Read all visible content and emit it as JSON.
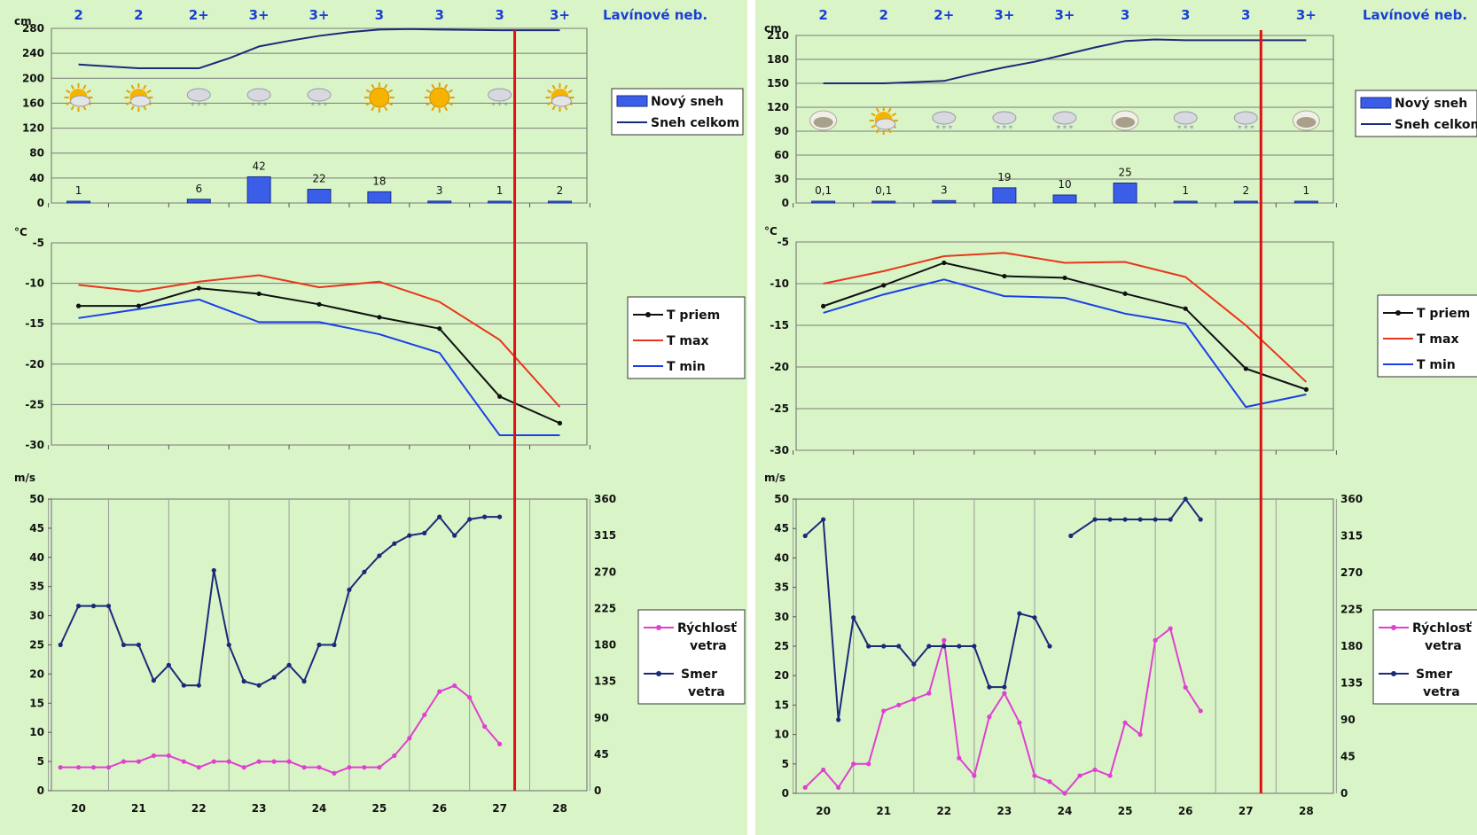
{
  "panels": [
    {
      "id": "left",
      "days": [
        "20",
        "21",
        "22",
        "23",
        "24",
        "25",
        "26",
        "27",
        "28"
      ],
      "avalanche_levels": [
        "2",
        "2",
        "2+",
        "3+",
        "3+",
        "3",
        "3",
        "3",
        "3+"
      ],
      "avalanche_title": "Lavínové neb.",
      "red_marker_x": 27.25,
      "snow": {
        "unit": "cm",
        "yticks": [
          "280",
          "240",
          "200",
          "160",
          "120",
          "80",
          "40",
          "0"
        ],
        "ymax": 280,
        "new_snow": [
          1,
          null,
          6,
          42,
          22,
          18,
          3,
          1,
          2
        ],
        "new_snow_labels": [
          "1",
          "",
          "6",
          "42",
          "22",
          "18",
          "3",
          "1",
          "2"
        ],
        "total_snow": [
          [
            20,
            222
          ],
          [
            21,
            216
          ],
          [
            22,
            216
          ],
          [
            22.5,
            232
          ],
          [
            23,
            251
          ],
          [
            23.5,
            260
          ],
          [
            24,
            268
          ],
          [
            24.5,
            274
          ],
          [
            25,
            278
          ],
          [
            25.5,
            279
          ],
          [
            26,
            278
          ],
          [
            27,
            277
          ],
          [
            28,
            277
          ]
        ],
        "weather_icons": [
          "sun-cloud",
          "sun-cloud",
          "snow",
          "snow",
          "snow",
          "sun",
          "sun",
          "snow",
          "sun-cloud"
        ],
        "legend": [
          "Nový sneh",
          "Sneh celkom"
        ]
      },
      "temp": {
        "unit": "°C",
        "yticks": [
          "-5",
          "-10",
          "-15",
          "-20",
          "-25",
          "-30"
        ],
        "ymin": -30,
        "ymax": -5,
        "t_avg": [
          [
            20,
            -12.8
          ],
          [
            21,
            -12.8
          ],
          [
            22,
            -10.6
          ],
          [
            23,
            -11.3
          ],
          [
            24,
            -12.6
          ],
          [
            25,
            -14.2
          ],
          [
            26,
            -15.6
          ],
          [
            27,
            -24
          ],
          [
            28,
            -27.3
          ]
        ],
        "t_max": [
          [
            20,
            -10.2
          ],
          [
            21,
            -11
          ],
          [
            22,
            -9.8
          ],
          [
            23,
            -9
          ],
          [
            24,
            -10.5
          ],
          [
            25,
            -9.8
          ],
          [
            26,
            -12.3
          ],
          [
            27,
            -17
          ],
          [
            28,
            -25.3
          ]
        ],
        "t_min": [
          [
            20,
            -14.3
          ],
          [
            21,
            -13.2
          ],
          [
            22,
            -12
          ],
          [
            23,
            -14.8
          ],
          [
            24,
            -14.8
          ],
          [
            25,
            -16.3
          ],
          [
            26,
            -18.6
          ],
          [
            27,
            -28.8
          ],
          [
            28,
            -28.8
          ]
        ],
        "legend": [
          "T priem",
          "T max",
          "T min"
        ]
      },
      "wind": {
        "unit": "m/s",
        "yticks": [
          "50",
          "45",
          "40",
          "35",
          "30",
          "25",
          "20",
          "15",
          "10",
          "5",
          "0"
        ],
        "y2ticks": [
          "360",
          "315",
          "270",
          "225",
          "180",
          "135",
          "90",
          "45",
          "0"
        ],
        "speed": [
          [
            19.7,
            4
          ],
          [
            20,
            4
          ],
          [
            20.25,
            4
          ],
          [
            20.5,
            4
          ],
          [
            20.75,
            5
          ],
          [
            21,
            5
          ],
          [
            21.25,
            6
          ],
          [
            21.5,
            6
          ],
          [
            21.75,
            5
          ],
          [
            22,
            4
          ],
          [
            22.25,
            5
          ],
          [
            22.5,
            5
          ],
          [
            22.75,
            4
          ],
          [
            23,
            5
          ],
          [
            23.25,
            5
          ],
          [
            23.5,
            5
          ],
          [
            23.75,
            4
          ],
          [
            24,
            4
          ],
          [
            24.25,
            3
          ],
          [
            24.5,
            4
          ],
          [
            24.75,
            4
          ],
          [
            25,
            4
          ],
          [
            25.25,
            6
          ],
          [
            25.5,
            9
          ],
          [
            25.75,
            13
          ],
          [
            26,
            17
          ],
          [
            26.25,
            18
          ],
          [
            26.5,
            16
          ],
          [
            26.75,
            11
          ],
          [
            27,
            8
          ]
        ],
        "direction": [
          [
            19.7,
            180
          ],
          [
            20,
            228
          ],
          [
            20.25,
            228
          ],
          [
            20.5,
            228
          ],
          [
            20.75,
            180
          ],
          [
            21,
            180
          ],
          [
            21.25,
            136
          ],
          [
            21.5,
            155
          ],
          [
            21.75,
            130
          ],
          [
            22,
            130
          ],
          [
            22.25,
            272
          ],
          [
            22.5,
            180
          ],
          [
            22.75,
            135
          ],
          [
            23,
            130
          ],
          [
            23.25,
            140
          ],
          [
            23.5,
            155
          ],
          [
            23.75,
            135
          ],
          [
            24,
            180
          ],
          [
            24.25,
            180
          ],
          [
            24.5,
            248
          ],
          [
            24.75,
            270
          ],
          [
            25,
            290
          ],
          [
            25.25,
            305
          ],
          [
            25.5,
            315
          ],
          [
            25.75,
            318
          ],
          [
            26,
            338
          ],
          [
            26.25,
            315
          ],
          [
            26.5,
            335
          ],
          [
            26.75,
            338
          ],
          [
            27,
            338
          ]
        ],
        "legend": [
          "Rýchlosť vetra",
          "Smer vetra"
        ]
      }
    },
    {
      "id": "right",
      "days": [
        "20",
        "21",
        "22",
        "23",
        "24",
        "25",
        "26",
        "27",
        "28"
      ],
      "avalanche_levels": [
        "2",
        "2",
        "2+",
        "3+",
        "3+",
        "3",
        "3",
        "3",
        "3+"
      ],
      "avalanche_title": "Lavínové neb.",
      "red_marker_x": 27.25,
      "snow": {
        "unit": "cm",
        "yticks": [
          "210",
          "180",
          "150",
          "120",
          "90",
          "60",
          "30",
          "0"
        ],
        "ymax": 210,
        "new_snow": [
          0.1,
          0.1,
          3,
          19,
          10,
          25,
          1,
          2,
          1
        ],
        "new_snow_labels": [
          "0,1",
          "0,1",
          "3",
          "19",
          "10",
          "25",
          "1",
          "2",
          "1"
        ],
        "total_snow": [
          [
            20,
            150
          ],
          [
            21,
            150
          ],
          [
            22,
            153
          ],
          [
            22.5,
            162
          ],
          [
            23,
            170
          ],
          [
            23.5,
            177
          ],
          [
            24,
            186
          ],
          [
            24.5,
            195
          ],
          [
            25,
            203
          ],
          [
            25.5,
            205
          ],
          [
            26,
            204
          ],
          [
            27,
            204
          ],
          [
            28,
            204
          ]
        ],
        "weather_icons": [
          "cloud",
          "sun-cloud",
          "snow",
          "snow",
          "snow",
          "cloud",
          "snow",
          "snow",
          "cloud"
        ],
        "legend": [
          "Nový sneh",
          "Sneh celkom"
        ]
      },
      "temp": {
        "unit": "°C",
        "yticks": [
          "-5",
          "-10",
          "-15",
          "-20",
          "-25",
          "-30"
        ],
        "ymin": -30,
        "ymax": -5,
        "t_avg": [
          [
            20,
            -12.7
          ],
          [
            21,
            -10.2
          ],
          [
            22,
            -7.5
          ],
          [
            23,
            -9.1
          ],
          [
            24,
            -9.3
          ],
          [
            25,
            -11.2
          ],
          [
            26,
            -13
          ],
          [
            27,
            -20.2
          ],
          [
            28,
            -22.7
          ]
        ],
        "t_max": [
          [
            20,
            -10
          ],
          [
            21,
            -8.5
          ],
          [
            22,
            -6.7
          ],
          [
            23,
            -6.3
          ],
          [
            24,
            -7.5
          ],
          [
            25,
            -7.4
          ],
          [
            26,
            -9.2
          ],
          [
            27,
            -15
          ],
          [
            28,
            -21.8
          ]
        ],
        "t_min": [
          [
            20,
            -13.5
          ],
          [
            21,
            -11.3
          ],
          [
            22,
            -9.5
          ],
          [
            23,
            -11.5
          ],
          [
            24,
            -11.7
          ],
          [
            25,
            -13.6
          ],
          [
            26,
            -14.8
          ],
          [
            27,
            -24.8
          ],
          [
            28,
            -23.3
          ]
        ],
        "legend": [
          "T priem",
          "T max",
          "T min"
        ]
      },
      "wind": {
        "unit": "m/s",
        "yticks": [
          "50",
          "45",
          "40",
          "35",
          "30",
          "25",
          "20",
          "15",
          "10",
          "5",
          "0"
        ],
        "y2ticks": [
          "360",
          "315",
          "270",
          "225",
          "180",
          "135",
          "90",
          "45",
          "0"
        ],
        "speed": [
          [
            19.7,
            1
          ],
          [
            20,
            4
          ],
          [
            20.25,
            1
          ],
          [
            20.5,
            5
          ],
          [
            20.75,
            5
          ],
          [
            21,
            14
          ],
          [
            21.25,
            15
          ],
          [
            21.5,
            16
          ],
          [
            21.75,
            17
          ],
          [
            22,
            26
          ],
          [
            22.25,
            6
          ],
          [
            22.5,
            3
          ],
          [
            22.75,
            13
          ],
          [
            23,
            17
          ],
          [
            23.25,
            12
          ],
          [
            23.5,
            3
          ],
          [
            23.75,
            2
          ],
          [
            24,
            0
          ],
          [
            24.25,
            3
          ],
          [
            24.5,
            4
          ],
          [
            24.75,
            3
          ],
          [
            25,
            12
          ],
          [
            25.25,
            10
          ],
          [
            25.5,
            26
          ],
          [
            25.75,
            28
          ],
          [
            26,
            18
          ],
          [
            26.25,
            14
          ]
        ],
        "direction_a": [
          [
            19.7,
            315
          ],
          [
            20,
            335
          ],
          [
            20.25,
            90
          ],
          [
            20.5,
            215
          ],
          [
            20.75,
            180
          ],
          [
            21,
            180
          ],
          [
            21.25,
            180
          ],
          [
            21.5,
            158
          ],
          [
            21.75,
            180
          ],
          [
            22,
            180
          ],
          [
            22.25,
            180
          ],
          [
            22.5,
            180
          ],
          [
            22.75,
            130
          ],
          [
            23,
            130
          ],
          [
            23.25,
            220
          ],
          [
            23.5,
            215
          ],
          [
            23.75,
            180
          ]
        ],
        "direction_b": [
          [
            24.1,
            315
          ],
          [
            24.5,
            335
          ],
          [
            24.75,
            335
          ],
          [
            25,
            335
          ],
          [
            25.25,
            335
          ],
          [
            25.5,
            335
          ],
          [
            25.75,
            335
          ],
          [
            26,
            360
          ],
          [
            26.25,
            335
          ]
        ],
        "legend": [
          "Rýchlosť vetra",
          "Smer vetra"
        ]
      }
    }
  ],
  "chart_data": [
    {
      "type": "bar",
      "title": "",
      "categories": [
        "20",
        "21",
        "22",
        "23",
        "24",
        "25",
        "26",
        "27",
        "28"
      ],
      "series": [
        {
          "name": "Nový sneh",
          "values": [
            1,
            null,
            6,
            42,
            22,
            18,
            3,
            1,
            2
          ]
        }
      ],
      "ylabel": "cm",
      "ylim": [
        0,
        280
      ]
    },
    {
      "type": "line",
      "categories": [
        "20",
        "21",
        "22",
        "23",
        "24",
        "25",
        "26",
        "27",
        "28"
      ],
      "series": [
        {
          "name": "T priem",
          "values": [
            -12.8,
            -12.8,
            -10.6,
            -11.3,
            -12.6,
            -14.2,
            -15.6,
            -24,
            -27.3
          ]
        },
        {
          "name": "T max",
          "values": [
            -10.2,
            -11,
            -9.8,
            -9,
            -10.5,
            -9.8,
            -12.3,
            -17,
            -25.3
          ]
        },
        {
          "name": "T min",
          "values": [
            -14.3,
            -13.2,
            -12,
            -14.8,
            -14.8,
            -16.3,
            -18.6,
            -28.8,
            -28.8
          ]
        }
      ],
      "ylabel": "°C",
      "ylim": [
        -30,
        -5
      ]
    },
    {
      "type": "bar",
      "categories": [
        "20",
        "21",
        "22",
        "23",
        "24",
        "25",
        "26",
        "27",
        "28"
      ],
      "series": [
        {
          "name": "Nový sneh",
          "values": [
            0.1,
            0.1,
            3,
            19,
            10,
            25,
            1,
            2,
            1
          ]
        }
      ],
      "ylabel": "cm",
      "ylim": [
        0,
        210
      ]
    },
    {
      "type": "line",
      "categories": [
        "20",
        "21",
        "22",
        "23",
        "24",
        "25",
        "26",
        "27",
        "28"
      ],
      "series": [
        {
          "name": "T priem",
          "values": [
            -12.7,
            -10.2,
            -7.5,
            -9.1,
            -9.3,
            -11.2,
            -13,
            -20.2,
            -22.7
          ]
        },
        {
          "name": "T max",
          "values": [
            -10,
            -8.5,
            -6.7,
            -6.3,
            -7.5,
            -7.4,
            -9.2,
            -15,
            -21.8
          ]
        },
        {
          "name": "T min",
          "values": [
            -13.5,
            -11.3,
            -9.5,
            -11.5,
            -11.7,
            -13.6,
            -14.8,
            -24.8,
            -23.3
          ]
        }
      ],
      "ylabel": "°C",
      "ylim": [
        -30,
        -5
      ]
    }
  ]
}
